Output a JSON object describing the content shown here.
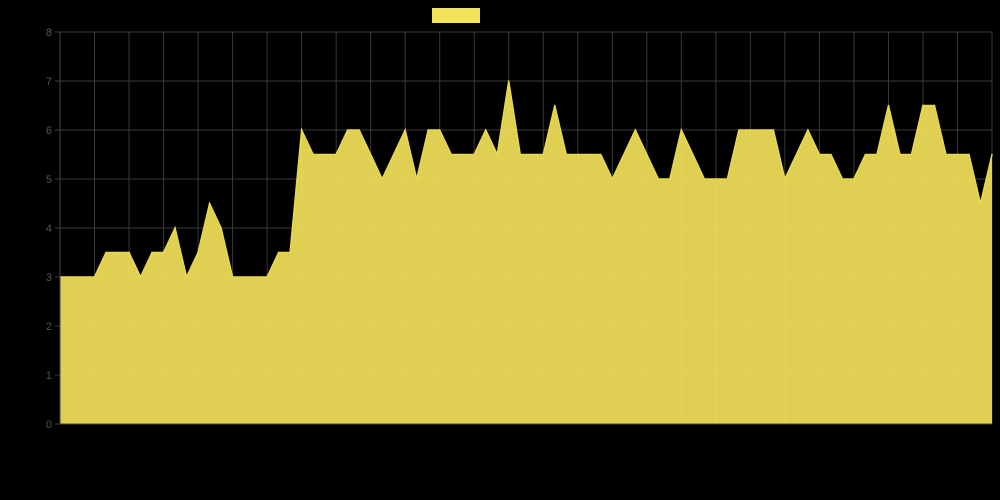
{
  "chart_data": {
    "type": "area",
    "title": "",
    "xlabel": "",
    "ylabel": "",
    "grid": true,
    "legend": "top-center",
    "ylim": [
      0,
      8
    ],
    "y_ticks": [
      0,
      1,
      2,
      3,
      4,
      5,
      6,
      7,
      8
    ],
    "colors": {
      "background": "#000000",
      "fill": "#f2e25a",
      "line": "#e8d84a",
      "grid": "#3a3a3a",
      "legend_swatch": "#f2e25a"
    },
    "series": [
      {
        "values": [
          3.0,
          3.0,
          3.0,
          3.0,
          3.5,
          3.5,
          3.5,
          3.0,
          3.5,
          3.5,
          4.0,
          3.0,
          3.5,
          4.5,
          4.0,
          3.0,
          3.0,
          3.0,
          3.0,
          3.5,
          3.5,
          6.0,
          5.5,
          5.5,
          5.5,
          6.0,
          6.0,
          5.5,
          5.0,
          5.5,
          6.0,
          5.0,
          6.0,
          6.0,
          5.5,
          5.5,
          5.5,
          6.0,
          5.5,
          7.0,
          5.5,
          5.5,
          5.5,
          6.5,
          5.5,
          5.5,
          5.5,
          5.5,
          5.0,
          5.5,
          6.0,
          5.5,
          5.0,
          5.0,
          6.0,
          5.5,
          5.0,
          5.0,
          5.0,
          6.0,
          6.0,
          6.0,
          6.0,
          5.0,
          5.5,
          6.0,
          5.5,
          5.5,
          5.0,
          5.0,
          5.5,
          5.5,
          6.5,
          5.5,
          5.5,
          6.5,
          6.5,
          5.5,
          5.5,
          5.5,
          4.5,
          5.5
        ]
      }
    ]
  }
}
